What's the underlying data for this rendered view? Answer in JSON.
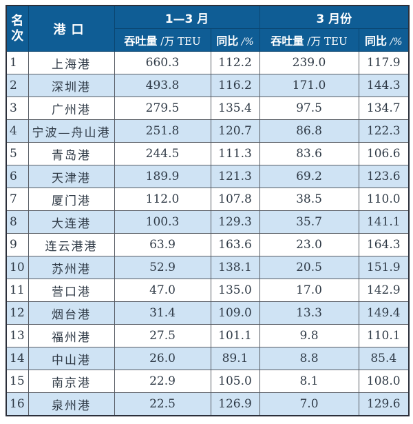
{
  "colors": {
    "header_bg": "#0f5d95",
    "header_text": "#ffffff",
    "row_alt_bg": "#cfe3f4",
    "row_bg": "#ffffff",
    "text": "#2f3a46"
  },
  "header": {
    "rank": "名次",
    "port": "港口",
    "group1": "1—3 月",
    "group2": "3 月份",
    "volume_label": "吞吐量",
    "volume_unit": " /万 TEU",
    "yoy_label": "同比",
    "yoy_unit": " /%"
  },
  "rows": [
    {
      "rank": "1",
      "port": "上海港",
      "vol_q1": "660.3",
      "yoy_q1": "112.2",
      "vol_mar": "239.0",
      "yoy_mar": "117.9"
    },
    {
      "rank": "2",
      "port": "深圳港",
      "vol_q1": "493.8",
      "yoy_q1": "116.2",
      "vol_mar": "171.0",
      "yoy_mar": "144.3"
    },
    {
      "rank": "3",
      "port": "广州港",
      "vol_q1": "279.5",
      "yoy_q1": "135.4",
      "vol_mar": "97.5",
      "yoy_mar": "134.7"
    },
    {
      "rank": "4",
      "port": "宁波—舟山港",
      "vol_q1": "251.8",
      "yoy_q1": "120.7",
      "vol_mar": "86.8",
      "yoy_mar": "122.3"
    },
    {
      "rank": "5",
      "port": "青岛港",
      "vol_q1": "244.5",
      "yoy_q1": "111.3",
      "vol_mar": "83.6",
      "yoy_mar": "106.6"
    },
    {
      "rank": "6",
      "port": "天津港",
      "vol_q1": "189.9",
      "yoy_q1": "121.3",
      "vol_mar": "69.2",
      "yoy_mar": "123.6"
    },
    {
      "rank": "7",
      "port": "厦门港",
      "vol_q1": "112.0",
      "yoy_q1": "107.8",
      "vol_mar": "38.5",
      "yoy_mar": "110.0"
    },
    {
      "rank": "8",
      "port": "大连港",
      "vol_q1": "100.3",
      "yoy_q1": "129.3",
      "vol_mar": "35.7",
      "yoy_mar": "141.1"
    },
    {
      "rank": "9",
      "port": "连云港港",
      "vol_q1": "63.9",
      "yoy_q1": "163.6",
      "vol_mar": "23.0",
      "yoy_mar": "164.3"
    },
    {
      "rank": "10",
      "port": "苏州港",
      "vol_q1": "52.9",
      "yoy_q1": "138.1",
      "vol_mar": "20.5",
      "yoy_mar": "151.9"
    },
    {
      "rank": "11",
      "port": "营口港",
      "vol_q1": "47.0",
      "yoy_q1": "135.0",
      "vol_mar": "17.0",
      "yoy_mar": "142.9"
    },
    {
      "rank": "12",
      "port": "烟台港",
      "vol_q1": "31.4",
      "yoy_q1": "109.0",
      "vol_mar": "13.3",
      "yoy_mar": "149.4"
    },
    {
      "rank": "13",
      "port": "福州港",
      "vol_q1": "27.5",
      "yoy_q1": "101.1",
      "vol_mar": "9.8",
      "yoy_mar": "110.1"
    },
    {
      "rank": "14",
      "port": "中山港",
      "vol_q1": "26.0",
      "yoy_q1": "89.1",
      "vol_mar": "8.8",
      "yoy_mar": "85.4"
    },
    {
      "rank": "15",
      "port": "南京港",
      "vol_q1": "22.9",
      "yoy_q1": "105.0",
      "vol_mar": "8.1",
      "yoy_mar": "108.0"
    },
    {
      "rank": "16",
      "port": "泉州港",
      "vol_q1": "22.5",
      "yoy_q1": "126.9",
      "vol_mar": "7.0",
      "yoy_mar": "129.6"
    }
  ]
}
